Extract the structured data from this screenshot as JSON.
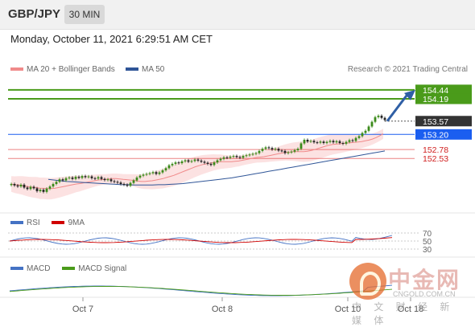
{
  "header": {
    "pair": "GBP/JPY",
    "timeframe": "30 MIN",
    "datetime": "Monday, October 11, 2021 6:29:51 AM CET"
  },
  "legend": {
    "ma20": "MA 20 + Bollinger Bands",
    "ma50": "MA 50",
    "ma20_color": "#f08a8a",
    "ma50_color": "#2f5597",
    "research": "Research © 2021 Trading Central"
  },
  "rsi_legend": {
    "rsi": "RSI",
    "ma": "9MA",
    "rsi_color": "#4472c4",
    "ma_color": "#d00000"
  },
  "macd_legend": {
    "macd": "MACD",
    "signal": "MACD Signal",
    "macd_color": "#4472c4",
    "signal_color": "#4a9b1a"
  },
  "watermark": {
    "cn": "中金网",
    "url": "CNGOLD.COM.CN",
    "sub": "中 文 财 经 新 媒 体"
  },
  "chart_data": {
    "type": "candlestick",
    "symbol": "GBP/JPY",
    "price_range": [
      151.35,
      154.75
    ],
    "x_ticks": [
      "Oct 7",
      "Oct 8",
      "Oct 10",
      "Oct 18"
    ],
    "levels": [
      {
        "price": 154.44,
        "label": "154.44",
        "kind": "resistance",
        "color": "#4a9b1a"
      },
      {
        "price": 154.19,
        "label": "154.19",
        "kind": "resistance",
        "color": "#4a9b1a"
      },
      {
        "price": 153.57,
        "label": "153.57",
        "kind": "last",
        "color": "#333333"
      },
      {
        "price": 153.2,
        "label": "153.20",
        "kind": "pivot",
        "color": "#1a5ef0"
      },
      {
        "price": 152.78,
        "label": "152.78",
        "kind": "support",
        "color": "#e03030"
      },
      {
        "price": 152.53,
        "label": "152.53",
        "kind": "support",
        "color": "#e03030"
      }
    ],
    "closes": [
      151.82,
      151.78,
      151.75,
      151.8,
      151.72,
      151.68,
      151.74,
      151.7,
      151.62,
      151.66,
      151.6,
      151.69,
      151.75,
      151.82,
      151.88,
      151.95,
      151.92,
      151.98,
      152.0,
      151.96,
      152.02,
      151.99,
      152.04,
      152.01,
      152.03,
      151.98,
      151.97,
      152.01,
      151.96,
      151.93,
      151.95,
      151.9,
      151.88,
      151.86,
      151.82,
      151.8,
      151.77,
      151.85,
      151.92,
      152.0,
      152.05,
      152.08,
      152.1,
      152.12,
      152.15,
      152.1,
      152.14,
      152.2,
      152.26,
      152.34,
      152.38,
      152.42,
      152.4,
      152.45,
      152.48,
      152.44,
      152.46,
      152.5,
      152.47,
      152.44,
      152.41,
      152.38,
      152.35,
      152.42,
      152.48,
      152.52,
      152.56,
      152.55,
      152.58,
      152.6,
      152.57,
      152.55,
      152.6,
      152.62,
      152.64,
      152.66,
      152.68,
      152.74,
      152.8,
      152.84,
      152.82,
      152.78,
      152.8,
      152.75,
      152.74,
      152.68,
      152.7,
      152.72,
      152.76,
      152.8,
      152.95,
      153.05,
      153.0,
      153.02,
      152.98,
      152.97,
      153.0,
      152.96,
      152.99,
      153.02,
      152.98,
      153.01,
      152.96,
      152.94,
      152.99,
      153.04,
      153.02,
      153.1,
      153.15,
      153.24,
      153.3,
      153.42,
      153.55,
      153.68,
      153.72,
      153.66,
      153.6
    ],
    "ma20": [
      151.82,
      151.8,
      151.79,
      151.78,
      151.76,
      151.74,
      151.73,
      151.72,
      151.7,
      151.7,
      151.69,
      151.69,
      151.7,
      151.72,
      151.74,
      151.76,
      151.78,
      151.8,
      151.82,
      151.83,
      151.85,
      151.87,
      151.89,
      151.91,
      151.93,
      151.94,
      151.95,
      151.96,
      151.97,
      151.97,
      151.96,
      151.95,
      151.94,
      151.93,
      151.92,
      151.9,
      151.89,
      151.89,
      151.9,
      151.91,
      151.93,
      151.95,
      151.97,
      152.0,
      152.03,
      152.06,
      152.1,
      152.14,
      152.18,
      152.22,
      152.26,
      152.3,
      152.33,
      152.36,
      152.38,
      152.4,
      152.42,
      152.43,
      152.44,
      152.44,
      152.44,
      152.44,
      152.45,
      152.46,
      152.48,
      152.5,
      152.52,
      152.54,
      152.56,
      152.57,
      152.58,
      152.6,
      152.62,
      152.64,
      152.66,
      152.68,
      152.7,
      152.71,
      152.72,
      152.72,
      152.72,
      152.72,
      152.73,
      152.75,
      152.78,
      152.81,
      152.84,
      152.87,
      152.9,
      152.92,
      152.93,
      152.94,
      152.95,
      152.96,
      152.97,
      152.98,
      152.99,
      153.0,
      153.02,
      153.04,
      153.07,
      153.11,
      153.16,
      153.22
    ],
    "ma50": [
      151.95,
      151.93,
      151.91,
      151.89,
      151.88,
      151.87,
      151.86,
      151.85,
      151.84,
      151.83,
      151.82,
      151.81,
      151.8,
      151.8,
      151.79,
      151.79,
      151.79,
      151.79,
      151.8,
      151.8,
      151.81,
      151.82,
      151.83,
      151.85,
      151.87,
      151.89,
      151.91,
      151.93,
      151.95,
      151.97,
      151.99,
      152.02,
      152.05,
      152.08,
      152.11,
      152.14,
      152.17,
      152.2,
      152.23,
      152.26,
      152.29,
      152.32,
      152.35,
      152.38,
      152.41,
      152.44,
      152.47,
      152.5,
      152.53,
      152.56,
      152.59,
      152.62,
      152.65,
      152.68,
      152.71,
      152.74
    ],
    "rsi_levels": [
      70,
      50,
      30
    ]
  }
}
